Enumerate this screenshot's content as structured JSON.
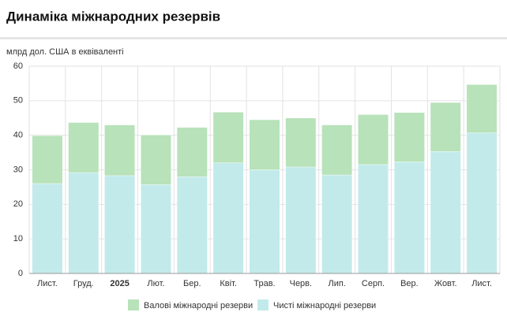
{
  "chart_data": {
    "type": "bar",
    "title": "Динаміка міжнародних резервів",
    "y_label": "млрд дол. США в еквіваленті",
    "categories": [
      "Лист.",
      "Груд.",
      "2025",
      "Лют.",
      "Бер.",
      "Квіт.",
      "Трав.",
      "Черв.",
      "Лип.",
      "Серп.",
      "Вер.",
      "Жовт.",
      "Лист."
    ],
    "series": [
      {
        "name": "Валові міжнародні резерви",
        "color": "#b8e2ba",
        "values": [
          39.9,
          43.7,
          43.0,
          40.1,
          42.3,
          46.7,
          44.5,
          45.0,
          43.0,
          46.0,
          46.6,
          49.5,
          54.7
        ]
      },
      {
        "name": "Чисті міжнародні резерви",
        "color": "#c2eaeb",
        "values": [
          26.0,
          29.2,
          28.3,
          25.7,
          28.0,
          32.0,
          30.0,
          30.8,
          28.5,
          31.5,
          32.3,
          35.3,
          40.7
        ]
      }
    ],
    "ylim": [
      0,
      60
    ],
    "yticks": [
      0,
      10,
      20,
      30,
      40,
      50,
      60
    ],
    "grid": true,
    "legend": "bottom"
  }
}
